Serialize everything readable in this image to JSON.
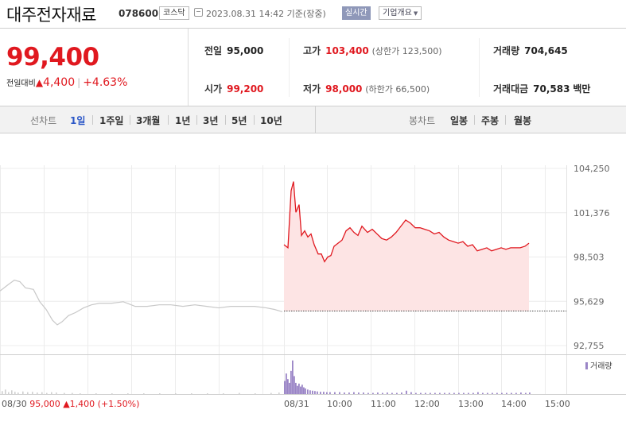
{
  "header": {
    "name": "대주전자재료",
    "code": "078600",
    "market": "코스닥",
    "datetime": "2023.08.31 14:42 기준(장중)",
    "realtime_label": "실시간",
    "company_label": "기업개요"
  },
  "quote": {
    "price": "99,400",
    "change_label": "전일대비",
    "change_amount": "4,400",
    "change_pct": "+4.63%",
    "up_color": "#e0181f"
  },
  "stats": {
    "prev_close": {
      "label": "전일",
      "value": "95,000"
    },
    "high": {
      "label": "고가",
      "value": "103,400",
      "note": "(상한가 123,500)"
    },
    "volume": {
      "label": "거래량",
      "value": "704,645"
    },
    "open": {
      "label": "시가",
      "value": "99,200"
    },
    "low": {
      "label": "저가",
      "value": "98,000",
      "note": "(하한가 66,500)"
    },
    "trade_value": {
      "label": "거래대금",
      "value": "70,583",
      "unit": "백만"
    }
  },
  "toolbar": {
    "line_chart_label": "선차트",
    "periods": [
      "1일",
      "1주일",
      "3개월",
      "1년",
      "3년",
      "5년",
      "10년"
    ],
    "active_period": "1일",
    "candle_chart_label": "봉차트",
    "candle_periods": [
      "일봉",
      "주봉",
      "월봉"
    ]
  },
  "chart_data": {
    "type": "line",
    "y_ticks": [
      "104,250",
      "101,376",
      "98,503",
      "95,629",
      "92,755"
    ],
    "ylim": [
      92755,
      104250
    ],
    "prev_close_line": 95000,
    "x_ticks": [
      "08/31",
      "10:00",
      "11:00",
      "12:00",
      "13:00",
      "14:00",
      "15:00"
    ],
    "prev_day": {
      "date_label": "08/30",
      "close": "95,000",
      "change": "1,400",
      "change_pct": "(+1.50%)",
      "series": [
        [
          0,
          96300
        ],
        [
          10,
          96700
        ],
        [
          18,
          97000
        ],
        [
          25,
          96900
        ],
        [
          32,
          96500
        ],
        [
          42,
          96400
        ],
        [
          50,
          95600
        ],
        [
          58,
          95100
        ],
        [
          66,
          94400
        ],
        [
          72,
          94100
        ],
        [
          78,
          94300
        ],
        [
          86,
          94700
        ],
        [
          95,
          94900
        ],
        [
          105,
          95200
        ],
        [
          115,
          95400
        ],
        [
          125,
          95500
        ],
        [
          140,
          95500
        ],
        [
          155,
          95600
        ],
        [
          170,
          95300
        ],
        [
          185,
          95300
        ],
        [
          200,
          95400
        ],
        [
          215,
          95400
        ],
        [
          230,
          95300
        ],
        [
          245,
          95400
        ],
        [
          260,
          95300
        ],
        [
          275,
          95200
        ],
        [
          290,
          95300
        ],
        [
          305,
          95300
        ],
        [
          320,
          95300
        ],
        [
          335,
          95200
        ],
        [
          345,
          95100
        ],
        [
          355,
          94950
        ]
      ],
      "color": "#c8c8c8"
    },
    "today": {
      "series": [
        [
          357,
          99300
        ],
        [
          362,
          99100
        ],
        [
          366,
          102800
        ],
        [
          369,
          103400
        ],
        [
          372,
          101400
        ],
        [
          376,
          101900
        ],
        [
          379,
          99900
        ],
        [
          383,
          100200
        ],
        [
          387,
          99800
        ],
        [
          391,
          100000
        ],
        [
          395,
          99300
        ],
        [
          400,
          98700
        ],
        [
          404,
          98700
        ],
        [
          408,
          98200
        ],
        [
          412,
          98500
        ],
        [
          416,
          98600
        ],
        [
          420,
          99200
        ],
        [
          425,
          99400
        ],
        [
          430,
          99600
        ],
        [
          435,
          100200
        ],
        [
          440,
          100400
        ],
        [
          445,
          100100
        ],
        [
          450,
          99900
        ],
        [
          455,
          100500
        ],
        [
          462,
          100100
        ],
        [
          468,
          100300
        ],
        [
          474,
          100000
        ],
        [
          480,
          99700
        ],
        [
          486,
          99600
        ],
        [
          492,
          99800
        ],
        [
          498,
          100100
        ],
        [
          504,
          100500
        ],
        [
          510,
          100900
        ],
        [
          516,
          100700
        ],
        [
          522,
          100400
        ],
        [
          528,
          100400
        ],
        [
          534,
          100300
        ],
        [
          540,
          100200
        ],
        [
          546,
          100000
        ],
        [
          552,
          100100
        ],
        [
          558,
          99800
        ],
        [
          564,
          99600
        ],
        [
          570,
          99500
        ],
        [
          576,
          99400
        ],
        [
          582,
          99500
        ],
        [
          588,
          99200
        ],
        [
          594,
          99300
        ],
        [
          600,
          98900
        ],
        [
          606,
          99000
        ],
        [
          612,
          99100
        ],
        [
          618,
          98900
        ],
        [
          624,
          99000
        ],
        [
          630,
          99100
        ],
        [
          636,
          99000
        ],
        [
          642,
          99100
        ],
        [
          648,
          99100
        ],
        [
          654,
          99100
        ],
        [
          660,
          99200
        ],
        [
          665,
          99400
        ]
      ],
      "color": "#e0181f",
      "fill": "#fde4e4"
    },
    "volume_label": "거래량",
    "volume_color": "#9a85c6",
    "volume_scale": [
      0,
      1
    ],
    "volume": {
      "prev_day": [
        [
          2,
          0.08
        ],
        [
          6,
          0.12
        ],
        [
          10,
          0.05
        ],
        [
          14,
          0.1
        ],
        [
          18,
          0.06
        ],
        [
          22,
          0.04
        ],
        [
          28,
          0.07
        ],
        [
          34,
          0.05
        ],
        [
          40,
          0.06
        ],
        [
          46,
          0.04
        ],
        [
          52,
          0.05
        ],
        [
          58,
          0.03
        ],
        [
          64,
          0.05
        ],
        [
          70,
          0.04
        ],
        [
          80,
          0.03
        ],
        [
          90,
          0.03
        ],
        [
          100,
          0.02
        ],
        [
          120,
          0.02
        ],
        [
          140,
          0.02
        ],
        [
          160,
          0.02
        ],
        [
          180,
          0.02
        ],
        [
          200,
          0.02
        ],
        [
          220,
          0.02
        ],
        [
          240,
          0.02
        ],
        [
          260,
          0.02
        ],
        [
          280,
          0.02
        ],
        [
          300,
          0.03
        ],
        [
          320,
          0.02
        ],
        [
          340,
          0.03
        ],
        [
          350,
          0.04
        ]
      ],
      "today": [
        [
          357,
          0.35
        ],
        [
          359,
          0.55
        ],
        [
          361,
          0.4
        ],
        [
          363,
          0.3
        ],
        [
          365,
          0.62
        ],
        [
          367,
          0.9
        ],
        [
          369,
          0.48
        ],
        [
          371,
          0.3
        ],
        [
          373,
          0.22
        ],
        [
          375,
          0.28
        ],
        [
          377,
          0.2
        ],
        [
          379,
          0.25
        ],
        [
          381,
          0.18
        ],
        [
          383,
          0.15
        ],
        [
          386,
          0.12
        ],
        [
          389,
          0.1
        ],
        [
          392,
          0.09
        ],
        [
          395,
          0.08
        ],
        [
          398,
          0.07
        ],
        [
          402,
          0.06
        ],
        [
          406,
          0.06
        ],
        [
          410,
          0.05
        ],
        [
          414,
          0.05
        ],
        [
          420,
          0.05
        ],
        [
          426,
          0.05
        ],
        [
          432,
          0.04
        ],
        [
          438,
          0.04
        ],
        [
          444,
          0.05
        ],
        [
          450,
          0.04
        ],
        [
          456,
          0.04
        ],
        [
          462,
          0.03
        ],
        [
          468,
          0.03
        ],
        [
          474,
          0.04
        ],
        [
          480,
          0.03
        ],
        [
          486,
          0.04
        ],
        [
          492,
          0.03
        ],
        [
          498,
          0.03
        ],
        [
          504,
          0.04
        ],
        [
          510,
          0.09
        ],
        [
          516,
          0.05
        ],
        [
          522,
          0.03
        ],
        [
          528,
          0.03
        ],
        [
          534,
          0.03
        ],
        [
          540,
          0.03
        ],
        [
          546,
          0.03
        ],
        [
          552,
          0.03
        ],
        [
          558,
          0.03
        ],
        [
          564,
          0.03
        ],
        [
          570,
          0.03
        ],
        [
          576,
          0.03
        ],
        [
          582,
          0.03
        ],
        [
          588,
          0.03
        ],
        [
          594,
          0.03
        ],
        [
          600,
          0.05
        ],
        [
          606,
          0.03
        ],
        [
          612,
          0.03
        ],
        [
          618,
          0.03
        ],
        [
          624,
          0.03
        ],
        [
          630,
          0.03
        ],
        [
          636,
          0.03
        ],
        [
          642,
          0.03
        ],
        [
          648,
          0.03
        ],
        [
          654,
          0.04
        ],
        [
          660,
          0.03
        ],
        [
          665,
          0.04
        ]
      ]
    }
  }
}
